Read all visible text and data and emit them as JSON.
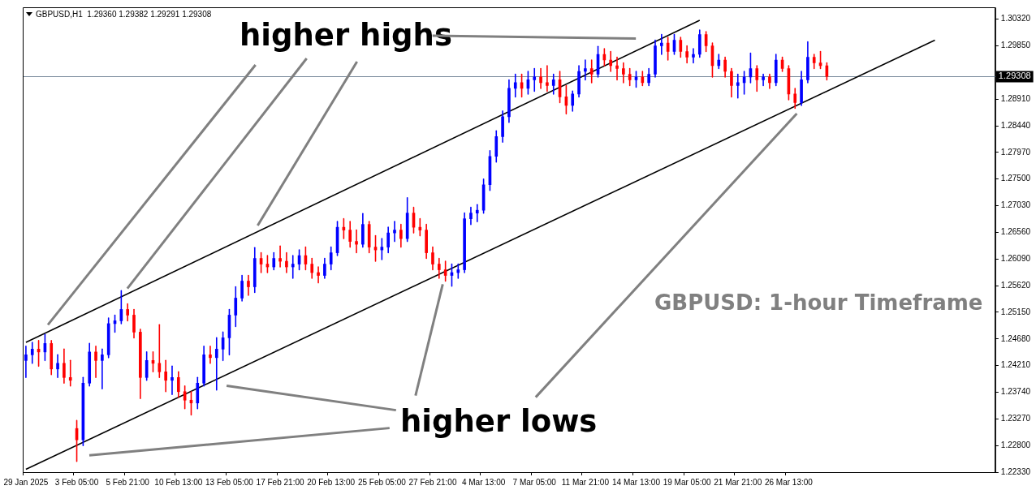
{
  "chart_data": {
    "type": "candlestick",
    "title": "GBPUSD,H1  1.29360 1.29382 1.29291 1.29308",
    "categories": [
      "29 Jan 2025",
      null,
      null,
      null,
      null,
      null,
      null,
      null,
      "3 Feb 05:00",
      null,
      null,
      null,
      null,
      null,
      null,
      null,
      "5 Feb 21:00",
      null,
      null,
      null,
      null,
      null,
      null,
      null,
      "10 Feb 13:00",
      null,
      null,
      null,
      null,
      null,
      null,
      null,
      "13 Feb 05:00",
      null,
      null,
      null,
      null,
      null,
      null,
      null,
      "17 Feb 21:00",
      null,
      null,
      null,
      null,
      null,
      null,
      null,
      "20 Feb 13:00",
      null,
      null,
      null,
      null,
      null,
      null,
      null,
      "25 Feb 05:00",
      null,
      null,
      null,
      null,
      null,
      null,
      null,
      "27 Feb 21:00",
      null,
      null,
      null,
      null,
      null,
      null,
      null,
      "4 Mar 13:00",
      null,
      null,
      null,
      null,
      null,
      null,
      null,
      "7 Mar 05:00",
      null,
      null,
      null,
      null,
      null,
      null,
      null,
      "11 Mar 21:00",
      null,
      null,
      null,
      null,
      null,
      null,
      null,
      "14 Mar 13:00",
      null,
      null,
      null,
      null,
      null,
      null,
      null,
      "19 Mar 05:00",
      null,
      null,
      null,
      null,
      null,
      null,
      null,
      "21 Mar 21:00",
      null,
      null,
      null,
      null,
      null,
      null,
      null,
      "26 Mar 13:00",
      null,
      null,
      null,
      null,
      null,
      null,
      null,
      null,
      null,
      null,
      null,
      null,
      null,
      null,
      null,
      null,
      null,
      null,
      null,
      null,
      null,
      null,
      null,
      null,
      null,
      null,
      null,
      null,
      null,
      null,
      null,
      null
    ],
    "series": [
      {
        "type": "candlestick",
        "ohlc": [
          [
            1.243,
            1.2455,
            1.24,
            1.244
          ],
          [
            1.244,
            1.2462,
            1.2425,
            1.245
          ],
          [
            1.245,
            1.2465,
            1.242,
            1.2445
          ],
          [
            1.2445,
            1.2476,
            1.243,
            1.246
          ],
          [
            1.246,
            1.2465,
            1.2405,
            1.2415
          ],
          [
            1.2415,
            1.244,
            1.24,
            1.2425
          ],
          [
            1.2425,
            1.245,
            1.239,
            1.24
          ],
          [
            1.24,
            1.243,
            1.2385,
            1.2395
          ],
          [
            1.231,
            1.2324,
            1.2252,
            1.229
          ],
          [
            1.229,
            1.24,
            1.228,
            1.239
          ],
          [
            1.239,
            1.246,
            1.2385,
            1.2445
          ],
          [
            1.2445,
            1.2455,
            1.24,
            1.243
          ],
          [
            1.243,
            1.245,
            1.238,
            1.244
          ],
          [
            1.244,
            1.2505,
            1.2435,
            1.2495
          ],
          [
            1.2495,
            1.251,
            1.248,
            1.25
          ],
          [
            1.25,
            1.2553,
            1.2495,
            1.252
          ],
          [
            1.252,
            1.253,
            1.25,
            1.251
          ],
          [
            1.251,
            1.252,
            1.247,
            1.248
          ],
          [
            1.248,
            1.2485,
            1.2363,
            1.24
          ],
          [
            1.24,
            1.2445,
            1.2395,
            1.243
          ],
          [
            1.243,
            1.2445,
            1.241,
            1.2425
          ],
          [
            1.2425,
            1.2493,
            1.24,
            1.241
          ],
          [
            1.241,
            1.243,
            1.2375,
            1.2395
          ],
          [
            1.2395,
            1.242,
            1.237,
            1.24
          ],
          [
            1.24,
            1.241,
            1.2365,
            1.2375
          ],
          [
            1.2375,
            1.2385,
            1.2345,
            1.236
          ],
          [
            1.236,
            1.2375,
            1.2334,
            1.2355
          ],
          [
            1.2355,
            1.24,
            1.2345,
            1.239
          ],
          [
            1.239,
            1.2455,
            1.2385,
            1.244
          ],
          [
            1.244,
            1.2455,
            1.2425,
            1.2435
          ],
          [
            1.2435,
            1.247,
            1.2378,
            1.245
          ],
          [
            1.245,
            1.248,
            1.243,
            1.247
          ],
          [
            1.247,
            1.252,
            1.244,
            1.251
          ],
          [
            1.251,
            1.256,
            1.249,
            1.254
          ],
          [
            1.254,
            1.258,
            1.2535,
            1.257
          ],
          [
            1.257,
            1.258,
            1.2545,
            1.256
          ],
          [
            1.256,
            1.2629,
            1.255,
            1.261
          ],
          [
            1.261,
            1.262,
            1.2585,
            1.26
          ],
          [
            1.26,
            1.2615,
            1.2585,
            1.2595
          ],
          [
            1.2595,
            1.262,
            1.259,
            1.261
          ],
          [
            1.261,
            1.2632,
            1.2595,
            1.2605
          ],
          [
            1.2605,
            1.262,
            1.2585,
            1.2595
          ],
          [
            1.2595,
            1.2615,
            1.2575,
            1.26
          ],
          [
            1.26,
            1.2625,
            1.259,
            1.2615
          ],
          [
            1.2615,
            1.263,
            1.259,
            1.26
          ],
          [
            1.26,
            1.261,
            1.2575,
            1.2585
          ],
          [
            1.2585,
            1.2595,
            1.2567,
            1.258
          ],
          [
            1.258,
            1.261,
            1.2575,
            1.26
          ],
          [
            1.26,
            1.263,
            1.259,
            1.262
          ],
          [
            1.262,
            1.2675,
            1.2615,
            1.2665
          ],
          [
            1.2665,
            1.268,
            1.2645,
            1.266
          ],
          [
            1.266,
            1.2675,
            1.263,
            1.264
          ],
          [
            1.264,
            1.266,
            1.262,
            1.2635
          ],
          [
            1.2635,
            1.2689,
            1.263,
            1.267
          ],
          [
            1.267,
            1.2675,
            1.262,
            1.263
          ],
          [
            1.263,
            1.265,
            1.2605,
            1.2625
          ],
          [
            1.2625,
            1.2645,
            1.2608,
            1.263
          ],
          [
            1.263,
            1.2665,
            1.262,
            1.2655
          ],
          [
            1.2655,
            1.2675,
            1.264,
            1.266
          ],
          [
            1.266,
            1.267,
            1.263,
            1.2645
          ],
          [
            1.2645,
            1.2717,
            1.264,
            1.269
          ],
          [
            1.269,
            1.27,
            1.2655,
            1.2665
          ],
          [
            1.2665,
            1.268,
            1.265,
            1.266
          ],
          [
            1.266,
            1.267,
            1.261,
            1.262
          ],
          [
            1.262,
            1.263,
            1.259,
            1.26
          ],
          [
            1.26,
            1.261,
            1.2575,
            1.259
          ],
          [
            1.259,
            1.2605,
            1.257,
            1.258
          ],
          [
            1.258,
            1.26,
            1.2561,
            1.2585
          ],
          [
            1.2585,
            1.26,
            1.2575,
            1.259
          ],
          [
            1.259,
            1.269,
            1.2585,
            1.268
          ],
          [
            1.268,
            1.27,
            1.267,
            1.269
          ],
          [
            1.269,
            1.2705,
            1.2675,
            1.2695
          ],
          [
            1.2695,
            1.275,
            1.269,
            1.274
          ],
          [
            1.274,
            1.28,
            1.273,
            1.279
          ],
          [
            1.279,
            1.2835,
            1.278,
            1.2825
          ],
          [
            1.2825,
            1.287,
            1.2815,
            1.286
          ],
          [
            1.286,
            1.2925,
            1.285,
            1.291
          ],
          [
            1.291,
            1.2935,
            1.2895,
            1.292
          ],
          [
            1.292,
            1.2935,
            1.2895,
            1.291
          ],
          [
            1.291,
            1.294,
            1.29,
            1.2925
          ],
          [
            1.2925,
            1.2945,
            1.2905,
            1.293
          ],
          [
            1.293,
            1.2945,
            1.291,
            1.292
          ],
          [
            1.292,
            1.295,
            1.2905,
            1.2915
          ],
          [
            1.2915,
            1.2935,
            1.29,
            1.2925
          ],
          [
            1.2925,
            1.294,
            1.2885,
            1.2895
          ],
          [
            1.2895,
            1.2915,
            1.2865,
            1.288
          ],
          [
            1.288,
            1.2905,
            1.287,
            1.29
          ],
          [
            1.29,
            1.295,
            1.2895,
            1.294
          ],
          [
            1.294,
            1.296,
            1.2925,
            1.2945
          ],
          [
            1.2945,
            1.296,
            1.292,
            1.2935
          ],
          [
            1.2935,
            1.2984,
            1.293,
            1.297
          ],
          [
            1.297,
            1.298,
            1.295,
            1.296
          ],
          [
            1.296,
            1.2975,
            1.294,
            1.295
          ],
          [
            1.295,
            1.2965,
            1.2925,
            1.2945
          ],
          [
            1.2945,
            1.2955,
            1.292,
            1.2935
          ],
          [
            1.2935,
            1.2945,
            1.2915,
            1.2925
          ],
          [
            1.2925,
            1.294,
            1.2912,
            1.293
          ],
          [
            1.293,
            1.294,
            1.2915,
            1.292
          ],
          [
            1.292,
            1.2945,
            1.2915,
            1.2935
          ],
          [
            1.2935,
            1.2995,
            1.293,
            1.2985
          ],
          [
            1.2985,
            1.3005,
            1.297,
            1.299
          ],
          [
            1.299,
            1.3,
            1.296,
            1.2975
          ],
          [
            1.2975,
            1.3005,
            1.297,
            1.2995
          ],
          [
            1.2995,
            1.3,
            1.2965,
            1.2975
          ],
          [
            1.2975,
            1.2985,
            1.2955,
            1.2965
          ],
          [
            1.2965,
            1.298,
            1.2955,
            1.297
          ],
          [
            1.297,
            1.3013,
            1.2965,
            1.3005
          ],
          [
            1.3005,
            1.301,
            1.2975,
            1.2985
          ],
          [
            1.2985,
            1.299,
            1.293,
            1.295
          ],
          [
            1.295,
            1.297,
            1.2945,
            1.296
          ],
          [
            1.296,
            1.2965,
            1.293,
            1.294
          ],
          [
            1.294,
            1.2945,
            1.2895,
            1.2915
          ],
          [
            1.2915,
            1.2935,
            1.2893,
            1.292
          ],
          [
            1.292,
            1.294,
            1.29,
            1.293
          ],
          [
            1.293,
            1.2972,
            1.292,
            1.2945
          ],
          [
            1.2945,
            1.295,
            1.2905,
            1.2925
          ],
          [
            1.2925,
            1.2935,
            1.2915,
            1.293
          ],
          [
            1.293,
            1.2935,
            1.291,
            1.292
          ],
          [
            1.292,
            1.297,
            1.2915,
            1.296
          ],
          [
            1.296,
            1.2965,
            1.294,
            1.2945
          ],
          [
            1.2945,
            1.295,
            1.289,
            1.29
          ],
          [
            1.29,
            1.291,
            1.2875,
            1.2885
          ],
          [
            1.2885,
            1.294,
            1.288,
            1.2925
          ],
          [
            1.2925,
            1.2992,
            1.292,
            1.2965
          ],
          [
            1.2965,
            1.297,
            1.2945,
            1.2955
          ],
          [
            1.2955,
            1.2975,
            1.2945,
            1.295
          ],
          [
            1.295,
            1.2955,
            1.2925,
            1.2931
          ],
          null,
          null,
          null,
          null,
          null,
          null,
          null,
          null,
          null,
          null,
          null,
          null,
          null,
          null,
          null,
          null,
          null,
          null,
          null,
          null,
          null,
          null,
          null,
          null,
          null,
          null
        ],
        "colors": [
          "#0000ff",
          "#0000ff",
          "#ff0000",
          "#0000ff",
          "#ff0000",
          "#0000ff",
          "#ff0000",
          "#ff0000",
          "#ff0000",
          "#0000ff",
          "#0000ff",
          "#ff0000",
          "#0000ff",
          "#0000ff",
          "#0000ff",
          "#0000ff",
          "#ff0000",
          "#ff0000",
          "#ff0000",
          "#0000ff",
          "#ff0000",
          "#ff0000",
          "#ff0000",
          "#0000ff",
          "#ff0000",
          "#ff0000",
          "#ff0000",
          "#0000ff",
          "#0000ff",
          "#ff0000",
          "#0000ff",
          "#0000ff",
          "#0000ff",
          "#0000ff",
          "#0000ff",
          "#ff0000",
          "#0000ff",
          "#ff0000",
          "#ff0000",
          "#0000ff",
          "#ff0000",
          "#ff0000",
          "#0000ff",
          "#0000ff",
          "#ff0000",
          "#ff0000",
          "#ff0000",
          "#0000ff",
          "#0000ff",
          "#0000ff",
          "#ff0000",
          "#ff0000",
          "#ff0000",
          "#0000ff",
          "#ff0000",
          "#ff0000",
          "#0000ff",
          "#0000ff",
          "#0000ff",
          "#ff0000",
          "#0000ff",
          "#ff0000",
          "#ff0000",
          "#ff0000",
          "#ff0000",
          "#ff0000",
          "#ff0000",
          "#0000ff",
          "#0000ff",
          "#0000ff",
          "#0000ff",
          "#0000ff",
          "#0000ff",
          "#0000ff",
          "#0000ff",
          "#0000ff",
          "#0000ff",
          "#0000ff",
          "#ff0000",
          "#0000ff",
          "#0000ff",
          "#ff0000",
          "#ff0000",
          "#0000ff",
          "#ff0000",
          "#ff0000",
          "#0000ff",
          "#0000ff",
          "#0000ff",
          "#ff0000",
          "#0000ff",
          "#ff0000",
          "#ff0000",
          "#ff0000",
          "#ff0000",
          "#ff0000",
          "#0000ff",
          "#ff0000",
          "#0000ff",
          "#0000ff",
          "#0000ff",
          "#ff0000",
          "#0000ff",
          "#ff0000",
          "#ff0000",
          "#0000ff",
          "#0000ff",
          "#ff0000",
          "#ff0000",
          "#0000ff",
          "#ff0000",
          "#ff0000",
          "#0000ff",
          "#0000ff",
          "#0000ff",
          "#ff0000",
          "#0000ff",
          "#ff0000",
          "#0000ff",
          "#ff0000",
          "#ff0000",
          "#ff0000",
          "#0000ff",
          "#0000ff",
          "#ff0000",
          "#ff0000",
          "#ff0000",
          null,
          null,
          null,
          null,
          null,
          null,
          null,
          null,
          null,
          null,
          null,
          null,
          null,
          null,
          null,
          null,
          null,
          null,
          null,
          null,
          null,
          null,
          null,
          null,
          null,
          null
        ]
      },
      {
        "type": "line",
        "color": "#000000",
        "values": [
          1.2462,
          null,
          null,
          null,
          null,
          null,
          null,
          null,
          null,
          null,
          null,
          null,
          null,
          null,
          null,
          null,
          null,
          null,
          null,
          null,
          null,
          null,
          null,
          null,
          null,
          null,
          null,
          null,
          null,
          null,
          null,
          null,
          null,
          null,
          null,
          null,
          null,
          null,
          null,
          null,
          null,
          null,
          null,
          null,
          null,
          null,
          null,
          null,
          null,
          null,
          null,
          null,
          null,
          null,
          null,
          null,
          null,
          null,
          null,
          null,
          null,
          null,
          null,
          null,
          null,
          null,
          null,
          null,
          null,
          null,
          null,
          null,
          null,
          null,
          null,
          null,
          null,
          null,
          null,
          null,
          null,
          null,
          null,
          null,
          null,
          null,
          null,
          null,
          null,
          null,
          null,
          null,
          null,
          null,
          null,
          null,
          null,
          null,
          null,
          null,
          null,
          null,
          null,
          null,
          null,
          null,
          1.303,
          null,
          null,
          null,
          null,
          null,
          null,
          null,
          null,
          null,
          null,
          null,
          null,
          null,
          null,
          null,
          null,
          null,
          null,
          null,
          null,
          null,
          null,
          null,
          null,
          null,
          null,
          null,
          null,
          null,
          null,
          null,
          null,
          null,
          null,
          null,
          null,
          null,
          null,
          null,
          null,
          null,
          null,
          null,
          null,
          null,
          null
        ]
      },
      {
        "type": "line",
        "color": "#000000",
        "values": [
          1.2238,
          null,
          null,
          null,
          null,
          null,
          null,
          null,
          null,
          null,
          null,
          null,
          null,
          null,
          null,
          null,
          null,
          null,
          null,
          null,
          null,
          null,
          null,
          null,
          null,
          null,
          null,
          null,
          null,
          null,
          null,
          null,
          null,
          null,
          null,
          null,
          null,
          null,
          null,
          null,
          null,
          null,
          null,
          null,
          null,
          null,
          null,
          null,
          null,
          null,
          null,
          null,
          null,
          null,
          null,
          null,
          null,
          null,
          null,
          null,
          null,
          null,
          null,
          null,
          null,
          null,
          null,
          null,
          null,
          null,
          null,
          null,
          null,
          null,
          null,
          null,
          null,
          null,
          null,
          null,
          null,
          null,
          null,
          null,
          null,
          null,
          null,
          null,
          null,
          null,
          null,
          null,
          null,
          null,
          null,
          null,
          null,
          null,
          null,
          null,
          null,
          null,
          null,
          null,
          null,
          null,
          null,
          null,
          null,
          null,
          null,
          null,
          null,
          null,
          null,
          null,
          null,
          null,
          null,
          null,
          null,
          null,
          null,
          null,
          null,
          null,
          null,
          null,
          null,
          null,
          null,
          null,
          null,
          null,
          null,
          null,
          null,
          null,
          null,
          null,
          null,
          null,
          null,
          1.2995,
          null,
          null,
          null,
          null,
          null,
          null,
          null,
          null,
          null
        ]
      }
    ],
    "ylim": [
      1.2233,
      1.3053
    ],
    "yticks": [
      {
        "value": 1.2233,
        "label": "1.22330"
      },
      {
        "value": 1.228,
        "label": "1.22800"
      },
      {
        "value": 1.2327,
        "label": "1.23270"
      },
      {
        "value": 1.2374,
        "label": "1.23740"
      },
      {
        "value": 1.2421,
        "label": "1.24210"
      },
      {
        "value": 1.2468,
        "label": "1.24680"
      },
      {
        "value": 1.2515,
        "label": "1.25150"
      },
      {
        "value": 1.2562,
        "label": "1.25620"
      },
      {
        "value": 1.2609,
        "label": "1.26090"
      },
      {
        "value": 1.2656,
        "label": "1.26560"
      },
      {
        "value": 1.2703,
        "label": "1.27030"
      },
      {
        "value": 1.275,
        "label": "1.27500"
      },
      {
        "value": 1.2797,
        "label": "1.27970"
      },
      {
        "value": 1.2844,
        "label": "1.28440"
      },
      {
        "value": 1.2891,
        "label": "1.28910"
      },
      {
        "value": 1.2985,
        "label": "1.29850"
      },
      {
        "value": 1.3032,
        "label": "1.30320"
      }
    ],
    "ref_lines": [
      {
        "axis": "y",
        "value": 1.29308,
        "label": "1.29308",
        "color": "#778899"
      }
    ],
    "annotations": [
      "higher highs",
      "higher lows",
      "GBPUSD: 1-hour Timeframe"
    ]
  }
}
